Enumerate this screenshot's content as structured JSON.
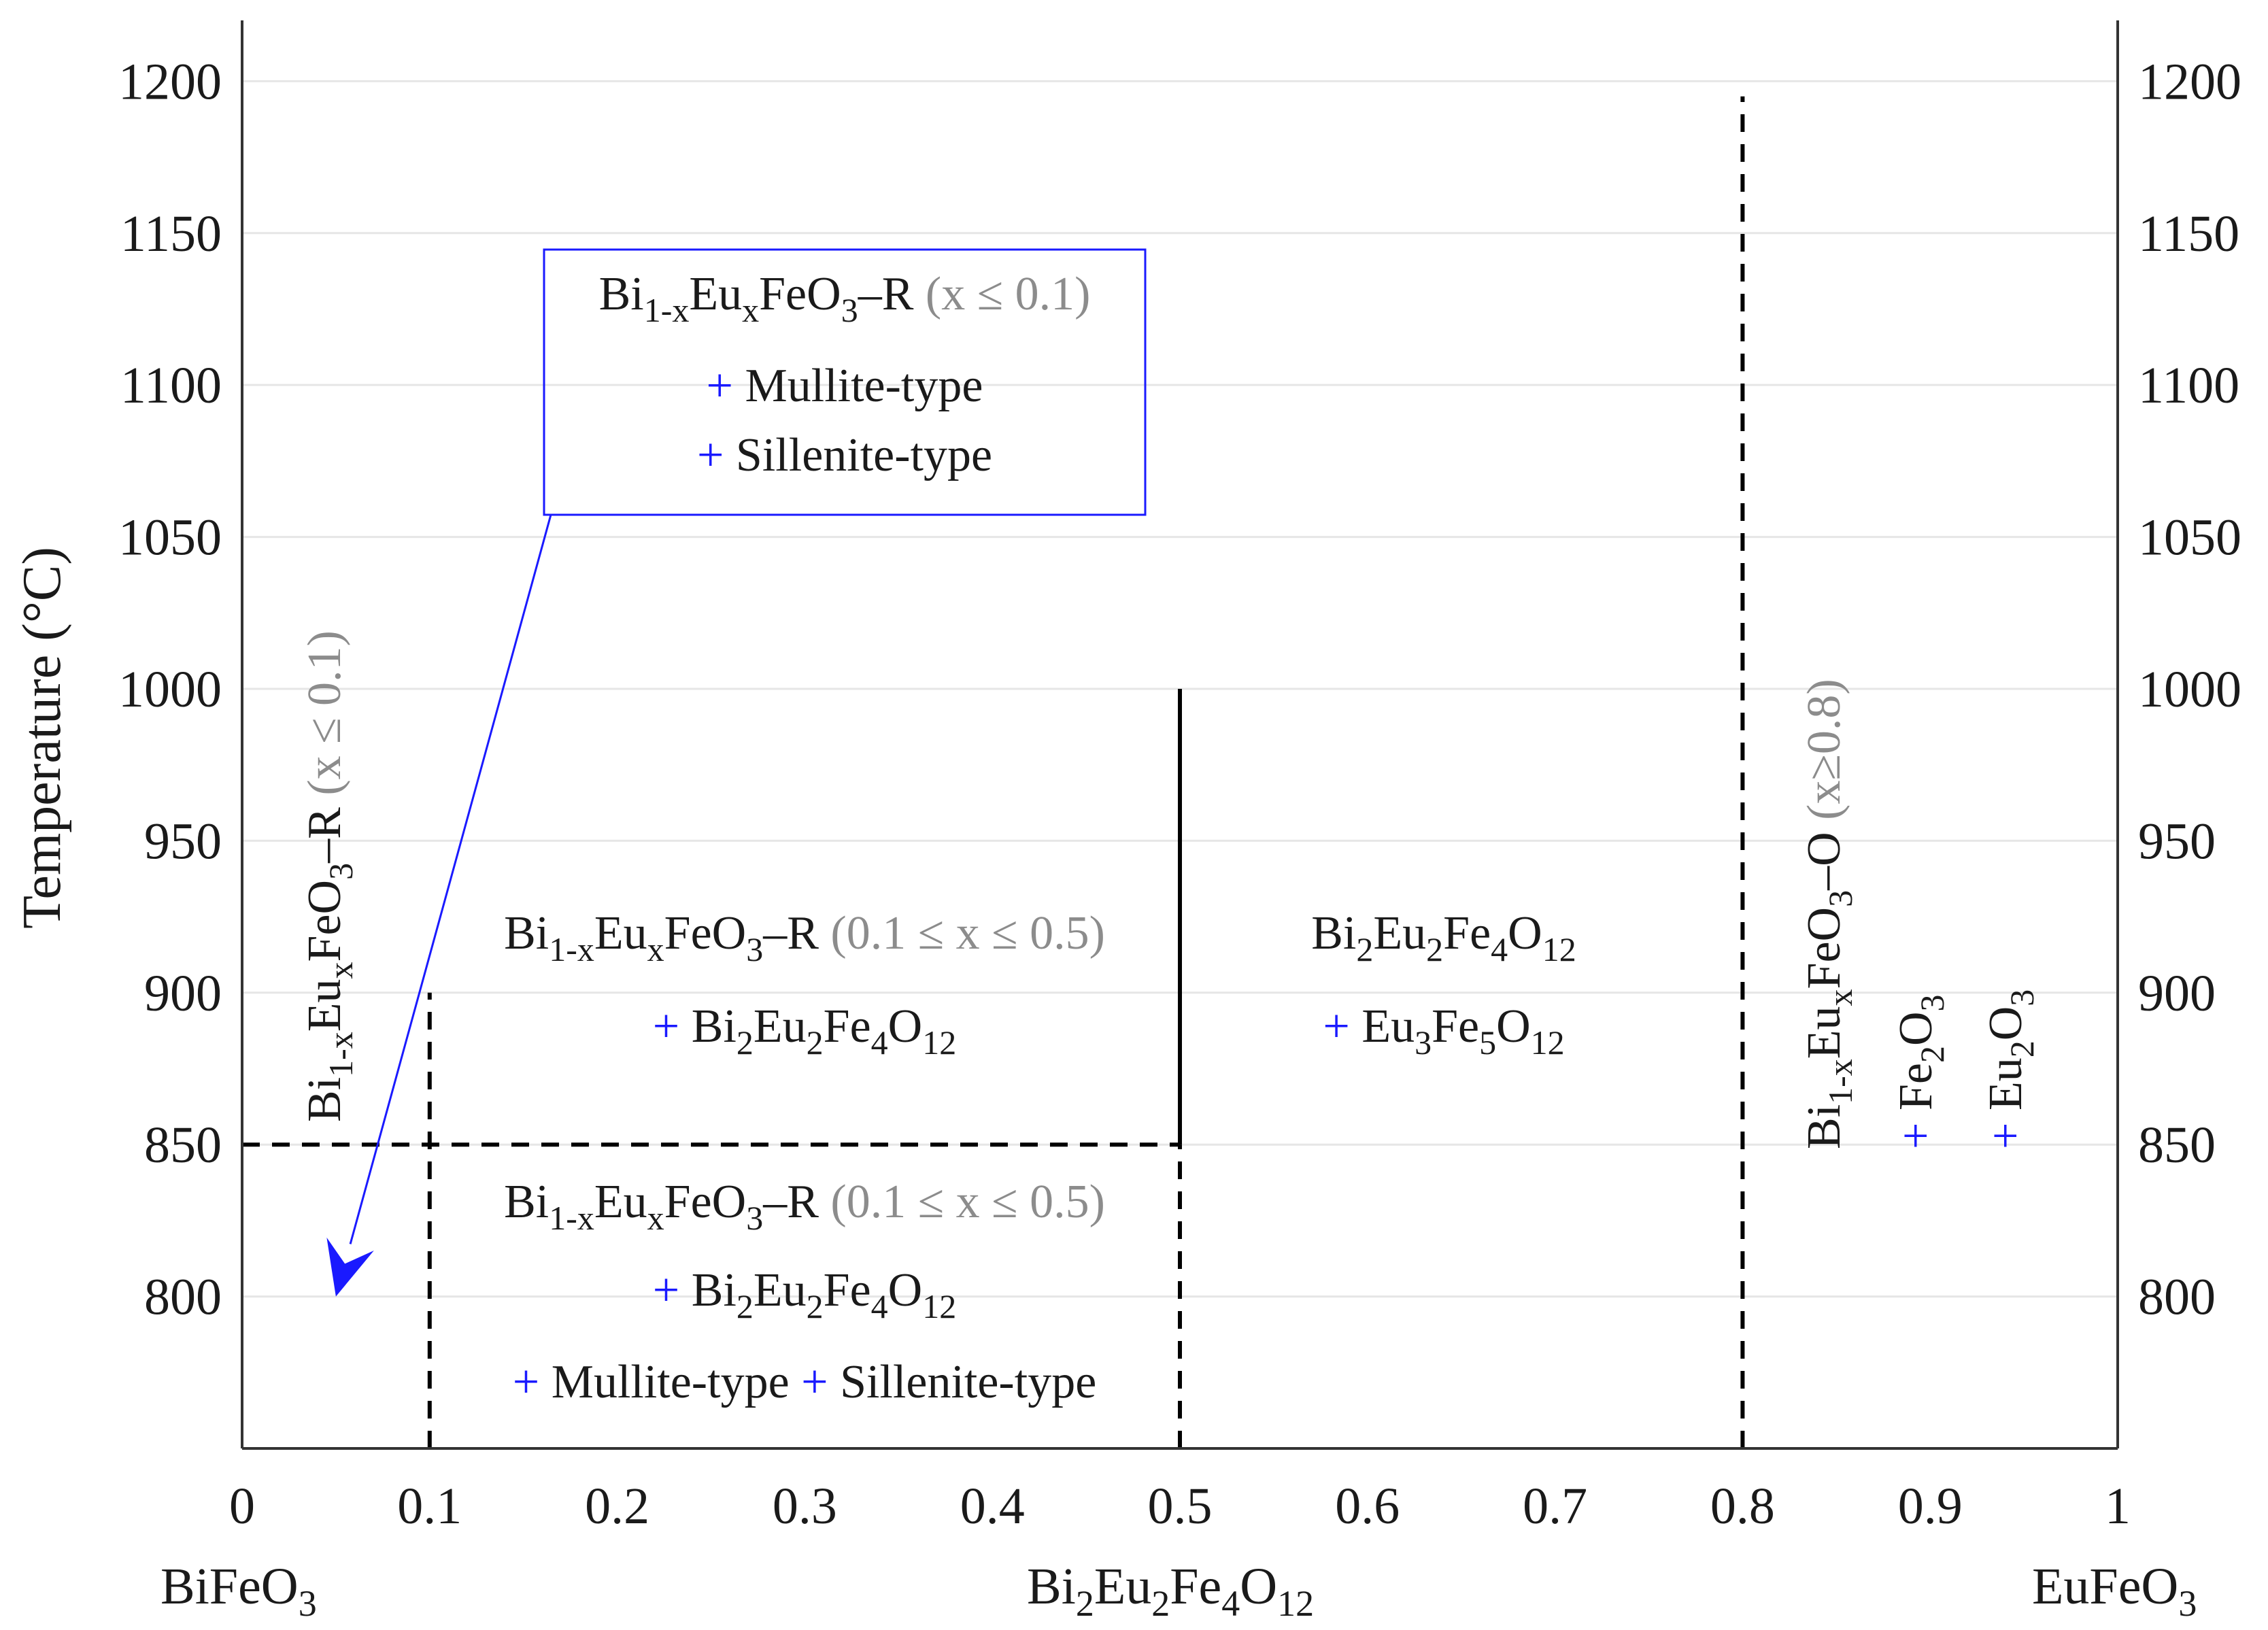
{
  "chart_data": {
    "type": "phase-diagram",
    "ylabel": "Temperature (°C)",
    "x_ticks": [
      "0",
      "0.1",
      "0.2",
      "0.3",
      "0.4",
      "0.5",
      "0.6",
      "0.7",
      "0.8",
      "0.9",
      "1"
    ],
    "y_ticks": [
      "800",
      "850",
      "900",
      "950",
      "1000",
      "1050",
      "1100",
      "1150",
      "1200"
    ],
    "xlim": [
      0,
      1
    ],
    "ylim": [
      750,
      1220
    ],
    "grid": "horizontal",
    "composition_labels": {
      "left": {
        "base": "BiFeO",
        "s1": "3"
      },
      "mid": {
        "p1": "Bi",
        "s1": "2",
        "p2": "Eu",
        "s2": "2",
        "p3": "Fe",
        "s3": "4",
        "p4": "O",
        "s4": "12"
      },
      "right": {
        "base": "EuFeO",
        "s1": "3"
      }
    },
    "boundaries": [
      {
        "kind": "dashed",
        "from": [
          0,
          850
        ],
        "to": [
          0.5,
          850
        ]
      },
      {
        "kind": "dashed",
        "from": [
          0.1,
          750
        ],
        "to": [
          0.1,
          900
        ]
      },
      {
        "kind": "dashed",
        "from": [
          0.5,
          750
        ],
        "to": [
          0.5,
          850
        ]
      },
      {
        "kind": "solid",
        "from": [
          0.5,
          850
        ],
        "to": [
          0.5,
          1000
        ]
      },
      {
        "kind": "dashed",
        "from": [
          0.8,
          750
        ],
        "to": [
          0.8,
          1195
        ]
      }
    ],
    "annotations": {
      "box_top": {
        "line1": {
          "a": "Bi",
          "b": "1-x",
          "c": "Eu",
          "d": "x",
          "e": "FeO",
          "f": "3",
          "g": "–R",
          "h": " (x ≤ 0.1)"
        },
        "line2": {
          "plus": "+",
          "text": " Mullite-type"
        },
        "line3": {
          "plus": "+",
          "text": " Sillenite-type"
        },
        "arrow_to": [
          0.05,
          800
        ]
      },
      "vertical_left": {
        "a": "Bi",
        "b": "1-x",
        "c": "Eu",
        "d": "x",
        "e": "FeO",
        "f": "3",
        "g": "–R",
        "h": " (x ≤ 0.1)"
      },
      "region_upper": {
        "line1": {
          "a": "Bi",
          "b": "1-x",
          "c": "Eu",
          "d": "x",
          "e": "FeO",
          "f": "3",
          "g": "–R",
          "h": " (0.1 ≤ x ≤ 0.5)"
        },
        "line2": {
          "plus": "+",
          "a": " Bi",
          "b": "2",
          "c": "Eu",
          "d": "2",
          "e": "Fe",
          "f": "4",
          "g": "O",
          "h": "12"
        }
      },
      "region_lower": {
        "line1": {
          "a": "Bi",
          "b": "1-x",
          "c": "Eu",
          "d": "x",
          "e": "FeO",
          "f": "3",
          "g": "–R",
          "h": " (0.1 ≤ x ≤ 0.5)"
        },
        "line2": {
          "plus": "+",
          "a": " Bi",
          "b": "2",
          "c": "Eu",
          "d": "2",
          "e": "Fe",
          "f": "4",
          "g": "O",
          "h": "12"
        },
        "line3": {
          "plus1": "+",
          "t1": " Mullite-type ",
          "plus2": "+",
          "t2": " Sillenite-type"
        }
      },
      "region_mid": {
        "line1": {
          "a": "Bi",
          "b": "2",
          "c": "Eu",
          "d": "2",
          "e": "Fe",
          "f": "4",
          "g": "O",
          "h": "12"
        },
        "line2": {
          "plus": "+",
          "a": " Eu",
          "b": "3",
          "c": "Fe",
          "d": "5",
          "e": "O",
          "f": "12"
        }
      },
      "vertical_right": {
        "a": "Bi",
        "b": "1-x",
        "c": "Eu",
        "d": "x",
        "e": "FeO",
        "f": "3",
        "g": "–O",
        "h": " (x≥0.8)"
      },
      "vertical_fe2o3": {
        "plus": "+",
        "a": " Fe",
        "b": "2",
        "c": "O",
        "d": "3"
      },
      "vertical_eu2o3": {
        "plus": "+",
        "a": " Eu",
        "b": "2",
        "c": "O",
        "d": "3"
      }
    },
    "colors": {
      "axis": "#333333",
      "grid": "#e6e6e6",
      "accent": "#1a1aff",
      "gray_text": "#8c8c8c"
    }
  }
}
